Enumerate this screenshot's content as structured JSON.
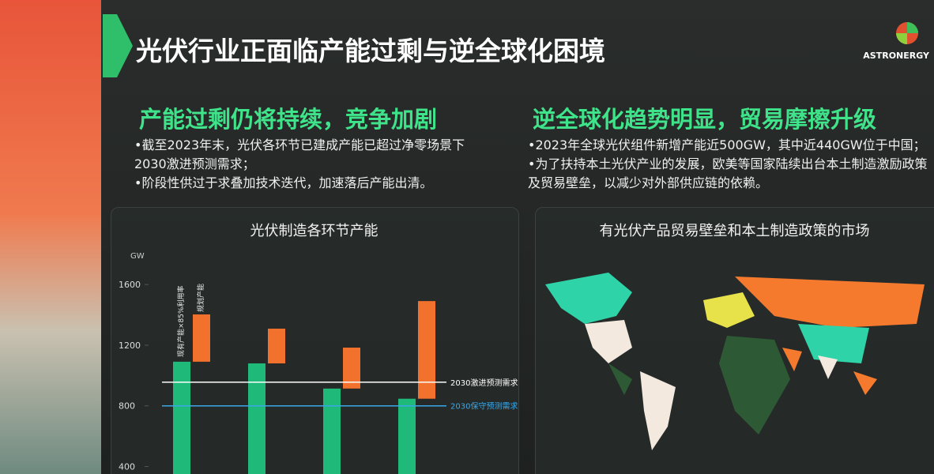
{
  "title": "光伏行业正面临产能过剩与逆全球化困境",
  "logo": "ASTRONERGY",
  "left": {
    "heading": "产能过剩仍将持续，竞争加剧",
    "bullets": [
      "•截至2023年末，光伏各环节已建成产能已超过净零场景下2030激进预测需求；",
      "•阶段性供过于求叠加技术迭代，加速落后产能出清。"
    ]
  },
  "right": {
    "heading": "逆全球化趋势明显，贸易摩擦升级",
    "bullets": [
      "•2023年全球光伏组件新增产能近500GW，其中近440GW位于中国；",
      "•为了扶持本土光伏产业的发展，欧美等国家陆续出台本土制造激励政策及贸易壁垒，以减少对外部供应链的依赖。"
    ],
    "map_title": "有光伏产品贸易壁垒和本土制造政策的市场"
  },
  "chart_data": {
    "type": "bar",
    "title": "光伏制造各环节产能",
    "y_label": "GW",
    "ylim": [
      340,
      1700
    ],
    "yticks": [
      400,
      800,
      1200,
      1600
    ],
    "series": [
      {
        "name": "现有产能×85%利用率",
        "color": "#1fb97a",
        "values": [
          1091,
          1080,
          914,
          847
        ]
      },
      {
        "name": "规划产能",
        "color": "#f2712d",
        "values": [
          312,
          229,
          270,
          644
        ]
      }
    ],
    "reference_lines": [
      {
        "name": "2030激进预测需求",
        "value": 956,
        "color": "#ffffff"
      },
      {
        "name": "2030保守预测需求",
        "value": 800,
        "color": "#3aa8e8"
      }
    ]
  }
}
